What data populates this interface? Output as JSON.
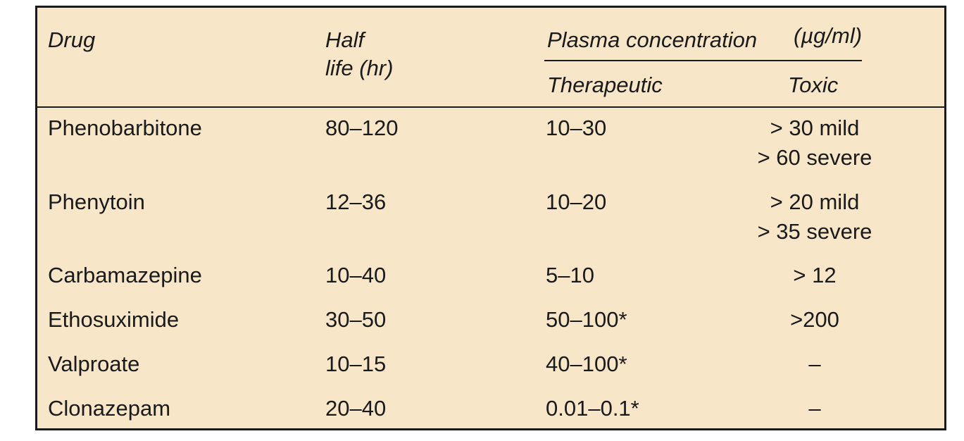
{
  "header": {
    "drug": "Drug",
    "half_life_line1": "Half",
    "half_life_line2": "life (hr)",
    "plasma": "Plasma concentration",
    "units": "(µg/ml)",
    "therapeutic": "Therapeutic",
    "toxic": "Toxic"
  },
  "rows": [
    {
      "drug": "Phenobarbitone",
      "half_life": "80–120",
      "therapeutic": "10–30",
      "toxic": [
        "> 30 mild",
        "> 60 severe"
      ]
    },
    {
      "drug": "Phenytoin",
      "half_life": "12–36",
      "therapeutic": "10–20",
      "toxic": [
        "> 20 mild",
        "> 35 severe"
      ]
    },
    {
      "drug": "Carbamazepine",
      "half_life": "10–40",
      "therapeutic": "5–10",
      "toxic": [
        "> 12"
      ]
    },
    {
      "drug": "Ethosuximide",
      "half_life": "30–50",
      "therapeutic": "50–100*",
      "toxic": [
        ">200"
      ]
    },
    {
      "drug": "Valproate",
      "half_life": "10–15",
      "therapeutic": "40–100*",
      "toxic": [
        "–"
      ]
    },
    {
      "drug": "Clonazepam",
      "half_life": "20–40",
      "therapeutic": "0.01–0.1*",
      "toxic": [
        "–"
      ]
    }
  ]
}
